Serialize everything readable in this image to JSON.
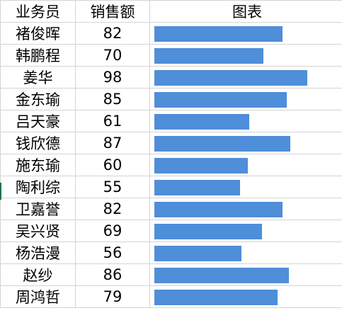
{
  "headers": {
    "name": "业务员",
    "sales": "销售额",
    "chart": "图表"
  },
  "rows": [
    {
      "name": "褚俊晖",
      "sales": "82"
    },
    {
      "name": "韩鹏程",
      "sales": "70"
    },
    {
      "name": "姜华",
      "sales": "98"
    },
    {
      "name": "金东瑜",
      "sales": "85"
    },
    {
      "name": "吕天豪",
      "sales": "61"
    },
    {
      "name": "钱欣德",
      "sales": "87"
    },
    {
      "name": "施东瑜",
      "sales": "60"
    },
    {
      "name": "陶利综",
      "sales": "55"
    },
    {
      "name": "卫嘉誉",
      "sales": "82"
    },
    {
      "name": "吴兴贤",
      "sales": "69"
    },
    {
      "name": "杨浩漫",
      "sales": "56"
    },
    {
      "name": "赵纱",
      "sales": "86"
    },
    {
      "name": "周鸿哲",
      "sales": "79"
    }
  ],
  "chart_data": {
    "type": "bar",
    "categories": [
      "褚俊晖",
      "韩鹏程",
      "姜华",
      "金东瑜",
      "吕天豪",
      "钱欣德",
      "施东瑜",
      "陶利综",
      "卫嘉誉",
      "吴兴贤",
      "杨浩漫",
      "赵纱",
      "周鸿哲"
    ],
    "values": [
      82,
      70,
      98,
      85,
      61,
      87,
      60,
      55,
      82,
      69,
      56,
      86,
      79
    ],
    "orientation": "horizontal",
    "title": "",
    "xlabel": "",
    "ylabel": "",
    "bar_color": "#4f8ed9"
  },
  "colors": {
    "bar": "#4f8ed9",
    "gridline": "#d4d4d4",
    "active_row_marker": "#217346"
  }
}
